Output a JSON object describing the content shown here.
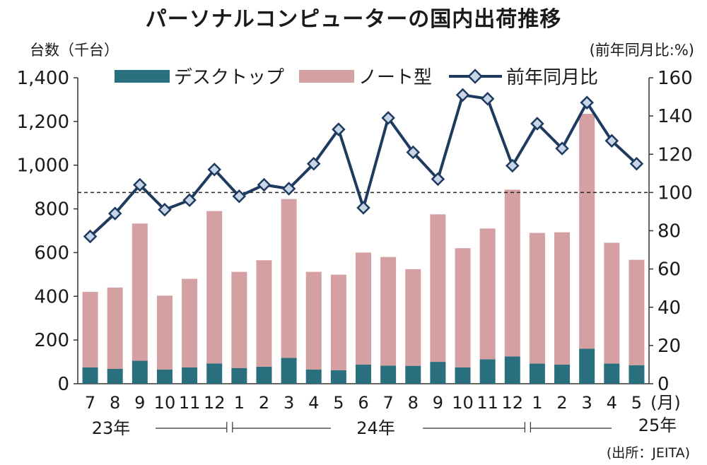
{
  "title": "パーソナルコンピューターの国内出荷推移",
  "left_unit": "台数（千台）",
  "right_unit": "(前年同月比:%)",
  "source": "(出所：JEITA)",
  "month_suffix": "(月)",
  "colors": {
    "desktop": "#2a6f7e",
    "notebook": "#d4a0a2",
    "yoy": "#1f3a5f",
    "marker": "#c8d6e8"
  },
  "chart_data": {
    "type": "bar",
    "categories": [
      "7",
      "8",
      "9",
      "10",
      "11",
      "12",
      "1",
      "2",
      "3",
      "4",
      "5",
      "6",
      "7",
      "8",
      "9",
      "10",
      "11",
      "12",
      "1",
      "2",
      "3",
      "4",
      "5"
    ],
    "year_labels": [
      {
        "label": "23年",
        "from": 0,
        "to": 5
      },
      {
        "label": "24年",
        "from": 6,
        "to": 17
      },
      {
        "label": "25年",
        "from": 18,
        "to": 22
      }
    ],
    "series": [
      {
        "name": "デスクトップ",
        "axis": "left",
        "kind": "bar",
        "values": [
          75,
          68,
          105,
          65,
          75,
          93,
          72,
          78,
          118,
          65,
          62,
          88,
          83,
          82,
          100,
          75,
          112,
          125,
          92,
          88,
          160,
          92,
          85
        ]
      },
      {
        "name": "ノート型",
        "axis": "left",
        "kind": "bar",
        "values": [
          345,
          372,
          628,
          338,
          405,
          697,
          440,
          487,
          727,
          447,
          437,
          512,
          497,
          442,
          675,
          545,
          598,
          763,
          598,
          605,
          1075,
          553,
          482
        ]
      },
      {
        "name": "前年同月比",
        "axis": "right",
        "kind": "line",
        "values": [
          77,
          89,
          104,
          91,
          96,
          112,
          98,
          104,
          102,
          115,
          133,
          92,
          139,
          121,
          107,
          151,
          149,
          114,
          136,
          123,
          147,
          127,
          115
        ]
      }
    ],
    "left_axis": {
      "min": 0,
      "max": 1400,
      "ticks": [
        "0",
        "200",
        "400",
        "600",
        "800",
        "1,000",
        "1,200",
        "1,400"
      ]
    },
    "right_axis": {
      "min": 0,
      "max": 160,
      "ticks": [
        "0",
        "20",
        "40",
        "60",
        "80",
        "100",
        "120",
        "140",
        "160"
      ]
    },
    "reference_line": {
      "axis": "right",
      "value": 100,
      "style": "dashed"
    },
    "legend": [
      "デスクトップ",
      "ノート型",
      "前年同月比"
    ],
    "legend_position": "top"
  }
}
